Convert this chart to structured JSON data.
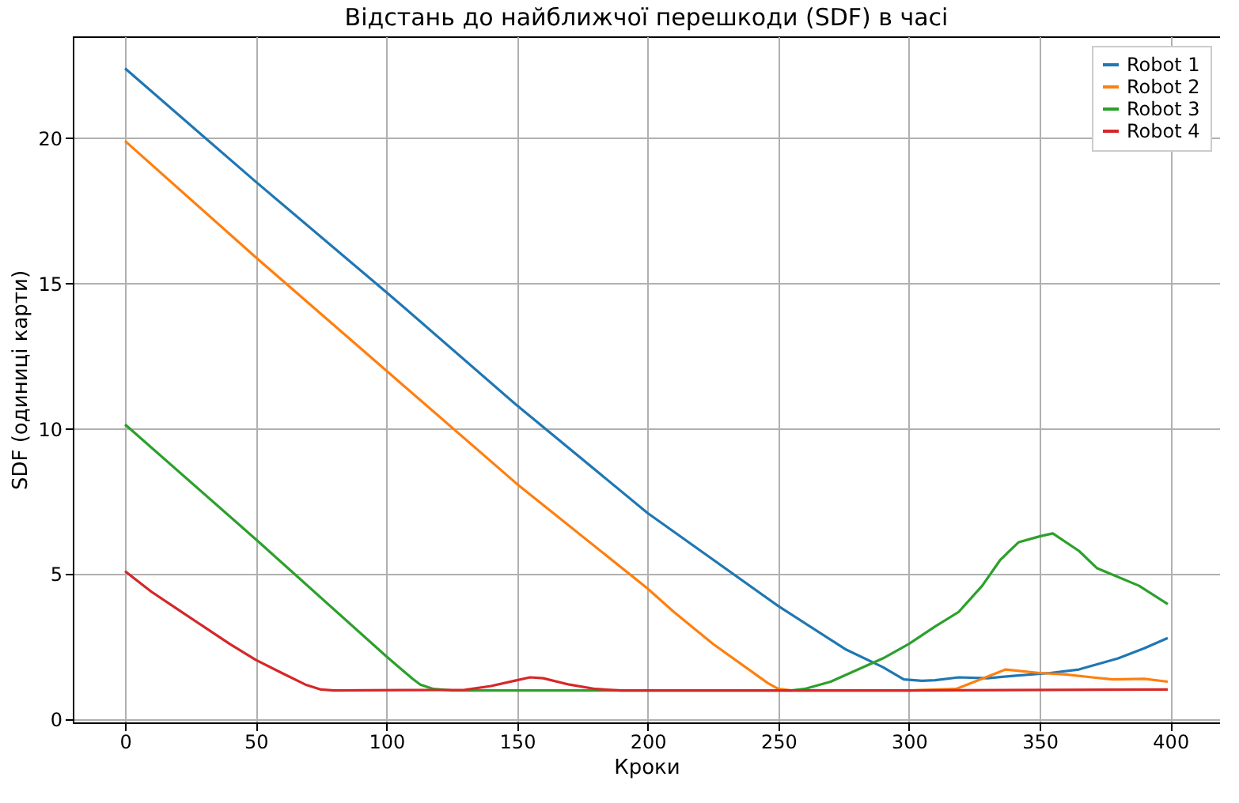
{
  "chart_data": {
    "type": "line",
    "title": "Відстань до найближчої перешкоди (SDF) в часі",
    "xlabel": "Кроки",
    "ylabel": "SDF (одиниці карти)",
    "xlim": [
      -20,
      419
    ],
    "xticks": [
      0,
      50,
      100,
      150,
      200,
      250,
      300,
      350,
      400
    ],
    "ylim": [
      -0.1,
      23.5
    ],
    "yticks": [
      0,
      5,
      10,
      15,
      20
    ],
    "grid": true,
    "legend": "top right",
    "line_style": "solid",
    "marker": "none",
    "series": [
      {
        "name": "Robot 1",
        "color": "#1f77b4",
        "x": [
          0,
          50,
          100,
          150,
          200,
          250,
          276,
          290,
          298,
          305,
          310,
          319,
          330,
          340,
          354,
          365,
          380,
          390,
          399
        ],
        "values": [
          22.4,
          18.5,
          14.7,
          10.8,
          7.1,
          3.9,
          2.4,
          1.8,
          1.38,
          1.33,
          1.35,
          1.45,
          1.42,
          1.5,
          1.6,
          1.72,
          2.1,
          2.45,
          2.8
        ]
      },
      {
        "name": "Robot 2",
        "color": "#ff7f0e",
        "x": [
          0,
          50,
          100,
          150,
          200,
          210,
          225,
          246,
          250,
          255,
          300,
          318,
          337,
          350,
          360,
          370,
          378,
          390,
          399
        ],
        "values": [
          19.9,
          15.9,
          12.0,
          8.1,
          4.5,
          3.7,
          2.6,
          1.25,
          1.05,
          1.0,
          1.0,
          1.05,
          1.72,
          1.6,
          1.55,
          1.45,
          1.38,
          1.4,
          1.3
        ]
      },
      {
        "name": "Robot 3",
        "color": "#2ca02c",
        "x": [
          0,
          50,
          100,
          110,
          113,
          118,
          125,
          255,
          260,
          270,
          280,
          290,
          300,
          310,
          319,
          328,
          335,
          342,
          350,
          355,
          365,
          372,
          388,
          399
        ],
        "values": [
          10.15,
          6.2,
          2.17,
          1.4,
          1.2,
          1.05,
          1.0,
          1.0,
          1.05,
          1.3,
          1.7,
          2.1,
          2.6,
          3.2,
          3.7,
          4.6,
          5.5,
          6.1,
          6.3,
          6.4,
          5.8,
          5.2,
          4.6,
          3.97
        ]
      },
      {
        "name": "Robot 4",
        "color": "#d62728",
        "x": [
          0,
          10,
          20,
          30,
          40,
          50,
          60,
          69,
          75,
          80,
          130,
          140,
          150,
          155,
          160,
          170,
          180,
          190,
          300,
          399
        ],
        "values": [
          5.1,
          4.4,
          3.8,
          3.2,
          2.6,
          2.05,
          1.6,
          1.2,
          1.03,
          1.0,
          1.02,
          1.15,
          1.35,
          1.45,
          1.42,
          1.2,
          1.05,
          1.0,
          1.0,
          1.03
        ]
      }
    ]
  }
}
